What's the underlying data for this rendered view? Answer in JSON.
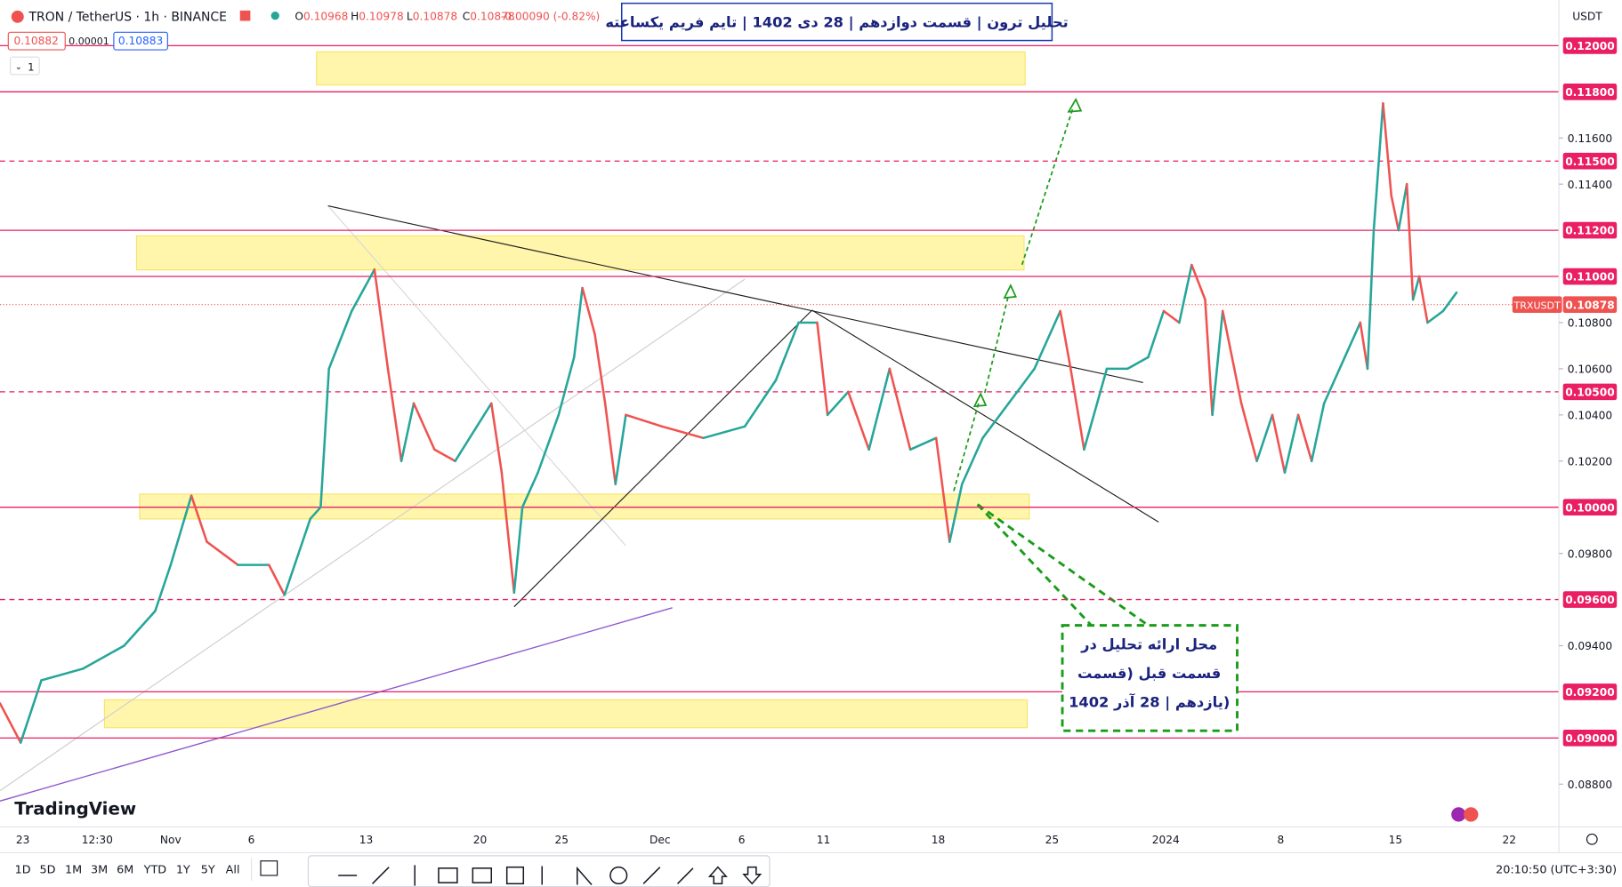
{
  "header": {
    "symbol": "TRON / TetherUS · 1h · BINANCE",
    "ohlc": [
      {
        "key": "O",
        "value": "0.10968"
      },
      {
        "key": "H",
        "value": "0.10978"
      },
      {
        "key": "L",
        "value": "0.10878"
      },
      {
        "key": "C",
        "value": "0.10878"
      }
    ],
    "change": "-0.00090 (-0.82%)",
    "sell": "0.10882",
    "spread": "0.00001",
    "buy": "0.10883",
    "interval_badge": "1",
    "currency": "USDT"
  },
  "title_box": "تحلیل ترون | قسمت دوازدهم | 28 دی 1402 | تایم فریم یکساعته",
  "annotation": [
    "محل ارائه تحلیل در",
    "قسمت قبل (قسمت",
    "یازدهم | 28 آذر 1402)"
  ],
  "chart": {
    "ylim": [
      0.085,
      0.1213
    ],
    "yticks": [
      {
        "value": 0.116,
        "label": "0.11600"
      },
      {
        "value": 0.114,
        "label": "0.11400"
      },
      {
        "value": 0.108,
        "label": "0.10800"
      },
      {
        "value": 0.106,
        "label": "0.10600"
      },
      {
        "value": 0.104,
        "label": "0.10400"
      },
      {
        "value": 0.102,
        "label": "0.10200"
      },
      {
        "value": 0.098,
        "label": "0.09800"
      },
      {
        "value": 0.094,
        "label": "0.09400"
      },
      {
        "value": 0.088,
        "label": "0.08800"
      }
    ],
    "levels": [
      {
        "value": 0.12,
        "label": "0.12000",
        "style": "solid"
      },
      {
        "value": 0.118,
        "label": "0.11800",
        "style": "solid"
      },
      {
        "value": 0.115,
        "label": "0.11500",
        "style": "dashed"
      },
      {
        "value": 0.112,
        "label": "0.11200",
        "style": "solid"
      },
      {
        "value": 0.11,
        "label": "0.11000",
        "style": "solid"
      },
      {
        "value": 0.105,
        "label": "0.10500",
        "style": "dashed"
      },
      {
        "value": 0.1,
        "label": "0.10000",
        "style": "solid"
      },
      {
        "value": 0.096,
        "label": "0.09600",
        "style": "dashed"
      },
      {
        "value": 0.092,
        "label": "0.09200",
        "style": "solid"
      },
      {
        "value": 0.09,
        "label": "0.09000",
        "style": "solid"
      }
    ],
    "last_price": {
      "value": 0.10878,
      "label": "0.10878",
      "name": "TRXUSDT"
    },
    "xlabels": [
      "23",
      "12:30",
      "Nov",
      "6",
      "13",
      "20",
      "25",
      "Dec",
      "6",
      "11",
      "18",
      "25",
      "2024",
      "8",
      "15",
      "22"
    ],
    "price_trace": [
      0.0915,
      0.0898,
      0.0925,
      0.093,
      0.094,
      0.0955,
      0.0975,
      0.1005,
      0.0985,
      0.0975,
      0.0975,
      0.0962,
      0.0995,
      0.1,
      0.106,
      0.1085,
      0.1103,
      0.106,
      0.102,
      0.1045,
      0.1025,
      0.102,
      0.1045,
      0.1015,
      0.0963,
      0.1,
      0.1015,
      0.104,
      0.1065,
      0.1095,
      0.1075,
      0.1045,
      0.101,
      0.104,
      0.1035,
      0.103,
      0.1035,
      0.1055,
      0.108,
      0.108,
      0.104,
      0.105,
      0.1025,
      0.106,
      0.1025,
      0.103,
      0.0985,
      0.101,
      0.103,
      0.1045,
      0.106,
      0.1085,
      0.106,
      0.1025,
      0.106,
      0.106,
      0.1065,
      0.1085,
      0.108,
      0.1105,
      0.109,
      0.104,
      0.1085,
      0.1045,
      0.102,
      0.104,
      0.1015,
      0.104,
      0.102,
      0.1045,
      0.1065,
      0.108,
      0.106,
      0.112,
      0.1175,
      0.1135,
      0.112,
      0.114,
      0.109,
      0.11,
      0.108,
      0.1085,
      0.1093
    ]
  },
  "toolbar": {
    "ranges": [
      "1D",
      "5D",
      "1M",
      "3M",
      "6M",
      "YTD",
      "1Y",
      "5Y",
      "All"
    ],
    "clock": "20:10:50 (UTC+3:30)"
  },
  "logo": "TradingView"
}
